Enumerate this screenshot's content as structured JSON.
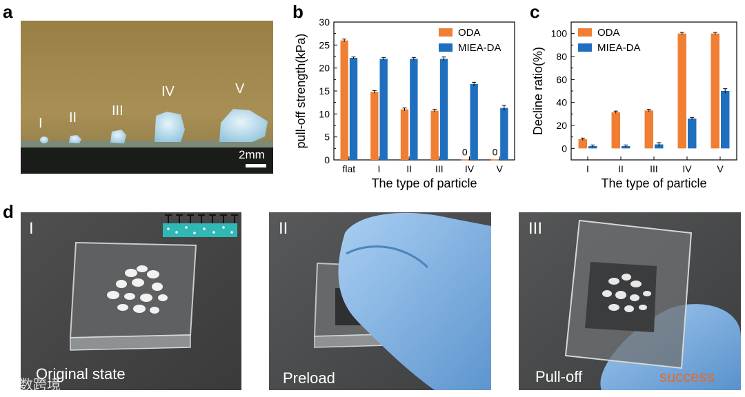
{
  "panels": {
    "a": {
      "letter": "a",
      "particle_labels": [
        "I",
        "II",
        "III",
        "IV",
        "V"
      ],
      "scale_bar": "2mm"
    },
    "b": {
      "letter": "b"
    },
    "c": {
      "letter": "c"
    },
    "d": {
      "letter": "d",
      "sub": [
        {
          "numeral": "I",
          "caption": "Original state"
        },
        {
          "numeral": "II",
          "caption": "Preload"
        },
        {
          "numeral": "III",
          "caption": "Pull-off",
          "status": "success"
        }
      ]
    }
  },
  "watermark": "八数跨境",
  "colors": {
    "oda": "#F07F34",
    "miea": "#1F6FBE",
    "success": "#E26B2A"
  },
  "chart_data": [
    {
      "type": "bar",
      "ylabel": "pull-off strength(kPa)",
      "xlabel": "The type of particle",
      "categories": [
        "flat",
        "I",
        "II",
        "III",
        "IV",
        "V"
      ],
      "ylim": [
        0,
        30
      ],
      "yticks": [
        0,
        5,
        10,
        15,
        20,
        25,
        30
      ],
      "legend": "top-right",
      "series": [
        {
          "name": "ODA",
          "values": [
            26,
            14.8,
            11,
            10.7,
            0.1,
            0.1
          ],
          "errors": [
            0.3,
            0.3,
            0.3,
            0.3,
            0,
            0
          ]
        },
        {
          "name": "MIEA-DA",
          "values": [
            22.2,
            22,
            22,
            22,
            16.5,
            11.3
          ],
          "errors": [
            0.2,
            0.3,
            0.3,
            0.4,
            0.4,
            0.6
          ]
        }
      ],
      "annotations": [
        "0",
        "0"
      ]
    },
    {
      "type": "bar",
      "ylabel": "Decline ratio(%)",
      "xlabel": "The type of particle",
      "categories": [
        "I",
        "II",
        "III",
        "IV",
        "V"
      ],
      "ylim": [
        -10,
        110
      ],
      "yticks": [
        0,
        20,
        40,
        60,
        80,
        100
      ],
      "legend": "top-left",
      "series": [
        {
          "name": "ODA",
          "values": [
            8,
            31.5,
            33,
            100,
            100
          ],
          "errors": [
            1,
            1,
            1,
            1,
            1
          ]
        },
        {
          "name": "MIEA-DA",
          "values": [
            2,
            2,
            3.5,
            26,
            50
          ],
          "errors": [
            1,
            1,
            1.5,
            1,
            2
          ]
        }
      ]
    }
  ]
}
